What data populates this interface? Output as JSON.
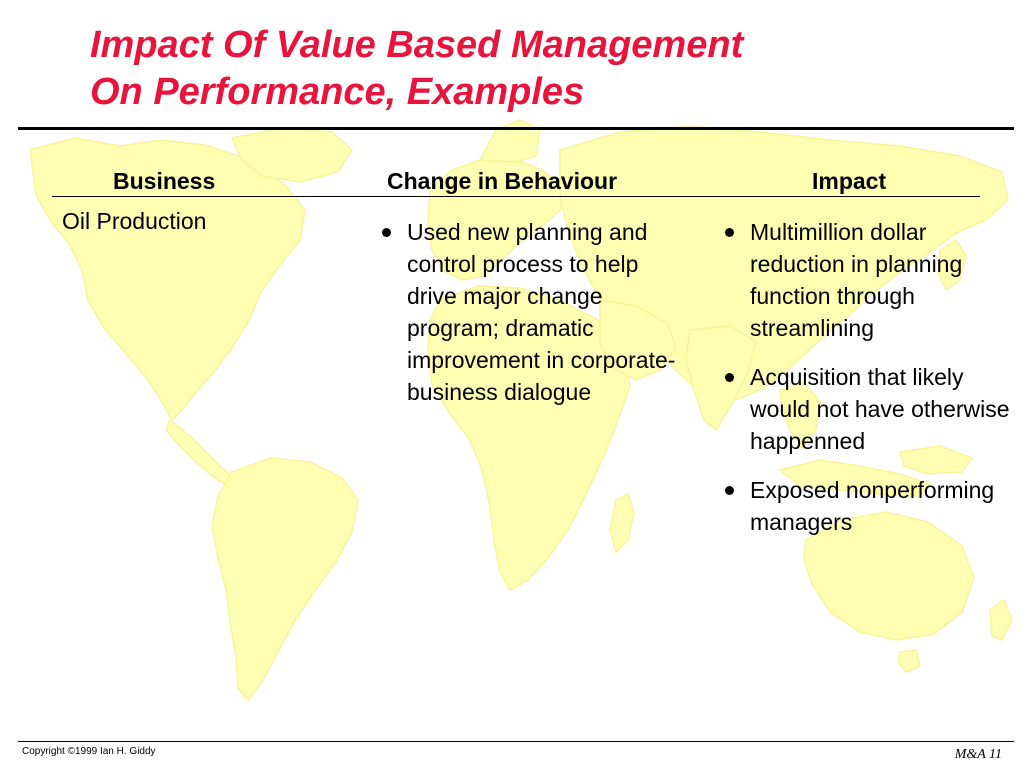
{
  "title": {
    "line1": "Impact Of Value Based Management",
    "line2": "On Performance, Examples"
  },
  "colors": {
    "title": "#e8143c",
    "map": "#ffffb3",
    "text": "#000000"
  },
  "background": {
    "icon": "world-map"
  },
  "table": {
    "headers": {
      "business": "Business",
      "change": "Change in Behaviour",
      "impact": "Impact"
    },
    "row": {
      "business": "Oil Production",
      "change": [
        "Used new planning and control process to help drive major change program; dramatic improvement in corporate-business dialogue"
      ],
      "impact": [
        "Multimillion dollar reduction in planning function through streamlining",
        "Acquisition that likely would not have otherwise happenned",
        "Exposed nonperforming managers"
      ]
    }
  },
  "footer": {
    "copyright": "Copyright ©1999 Ian H. Giddy",
    "slide_number": "M&A 11"
  }
}
